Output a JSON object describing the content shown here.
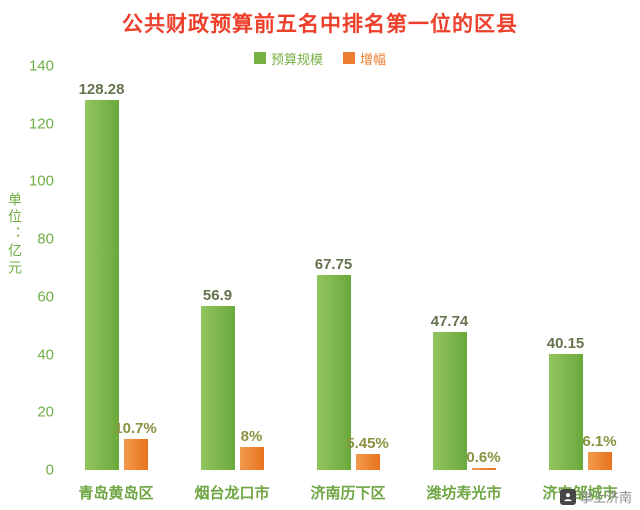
{
  "title": "公共财政预算前五名中排名第一位的区县",
  "colors": {
    "title": "#ee3f2a",
    "budget_bar": "#76b143",
    "growth_bar": "#ed7d31",
    "axis_text": "#70ad47",
    "category_text": "#6fa643"
  },
  "legend": [
    {
      "label": "预算规模",
      "color": "#76b143"
    },
    {
      "label": "增幅",
      "color": "#ed7d31"
    }
  ],
  "y_axis": {
    "unit_label": "单位：亿元",
    "ticks": [
      140,
      120,
      100,
      80,
      60,
      40,
      20,
      0
    ],
    "max": 140
  },
  "watermark": "掌上济南",
  "chart_data": {
    "type": "bar",
    "title": "公共财政预算前五名中排名第一位的区县",
    "categories": [
      "青岛黄岛区",
      "烟台龙口市",
      "济南历下区",
      "潍坊寿光市",
      "济宁邹城市"
    ],
    "series": [
      {
        "name": "预算规模",
        "values": [
          128.28,
          56.9,
          67.75,
          47.74,
          40.15
        ],
        "labels": [
          "128.28",
          "56.9",
          "67.75",
          "47.74",
          "40.15"
        ],
        "color": "#76b143",
        "label_color": "#64744e"
      },
      {
        "name": "增幅",
        "values": [
          10.7,
          8,
          5.45,
          0.6,
          6.1
        ],
        "labels": [
          "10.7%",
          "8%",
          "5.45%",
          "0.6%",
          "6.1%"
        ],
        "color": "#ed7d31",
        "label_color": "#8a9240"
      }
    ],
    "ylabel": "单位：亿元",
    "ylim": [
      0,
      140
    ],
    "grid": false,
    "legend_position": "top"
  }
}
